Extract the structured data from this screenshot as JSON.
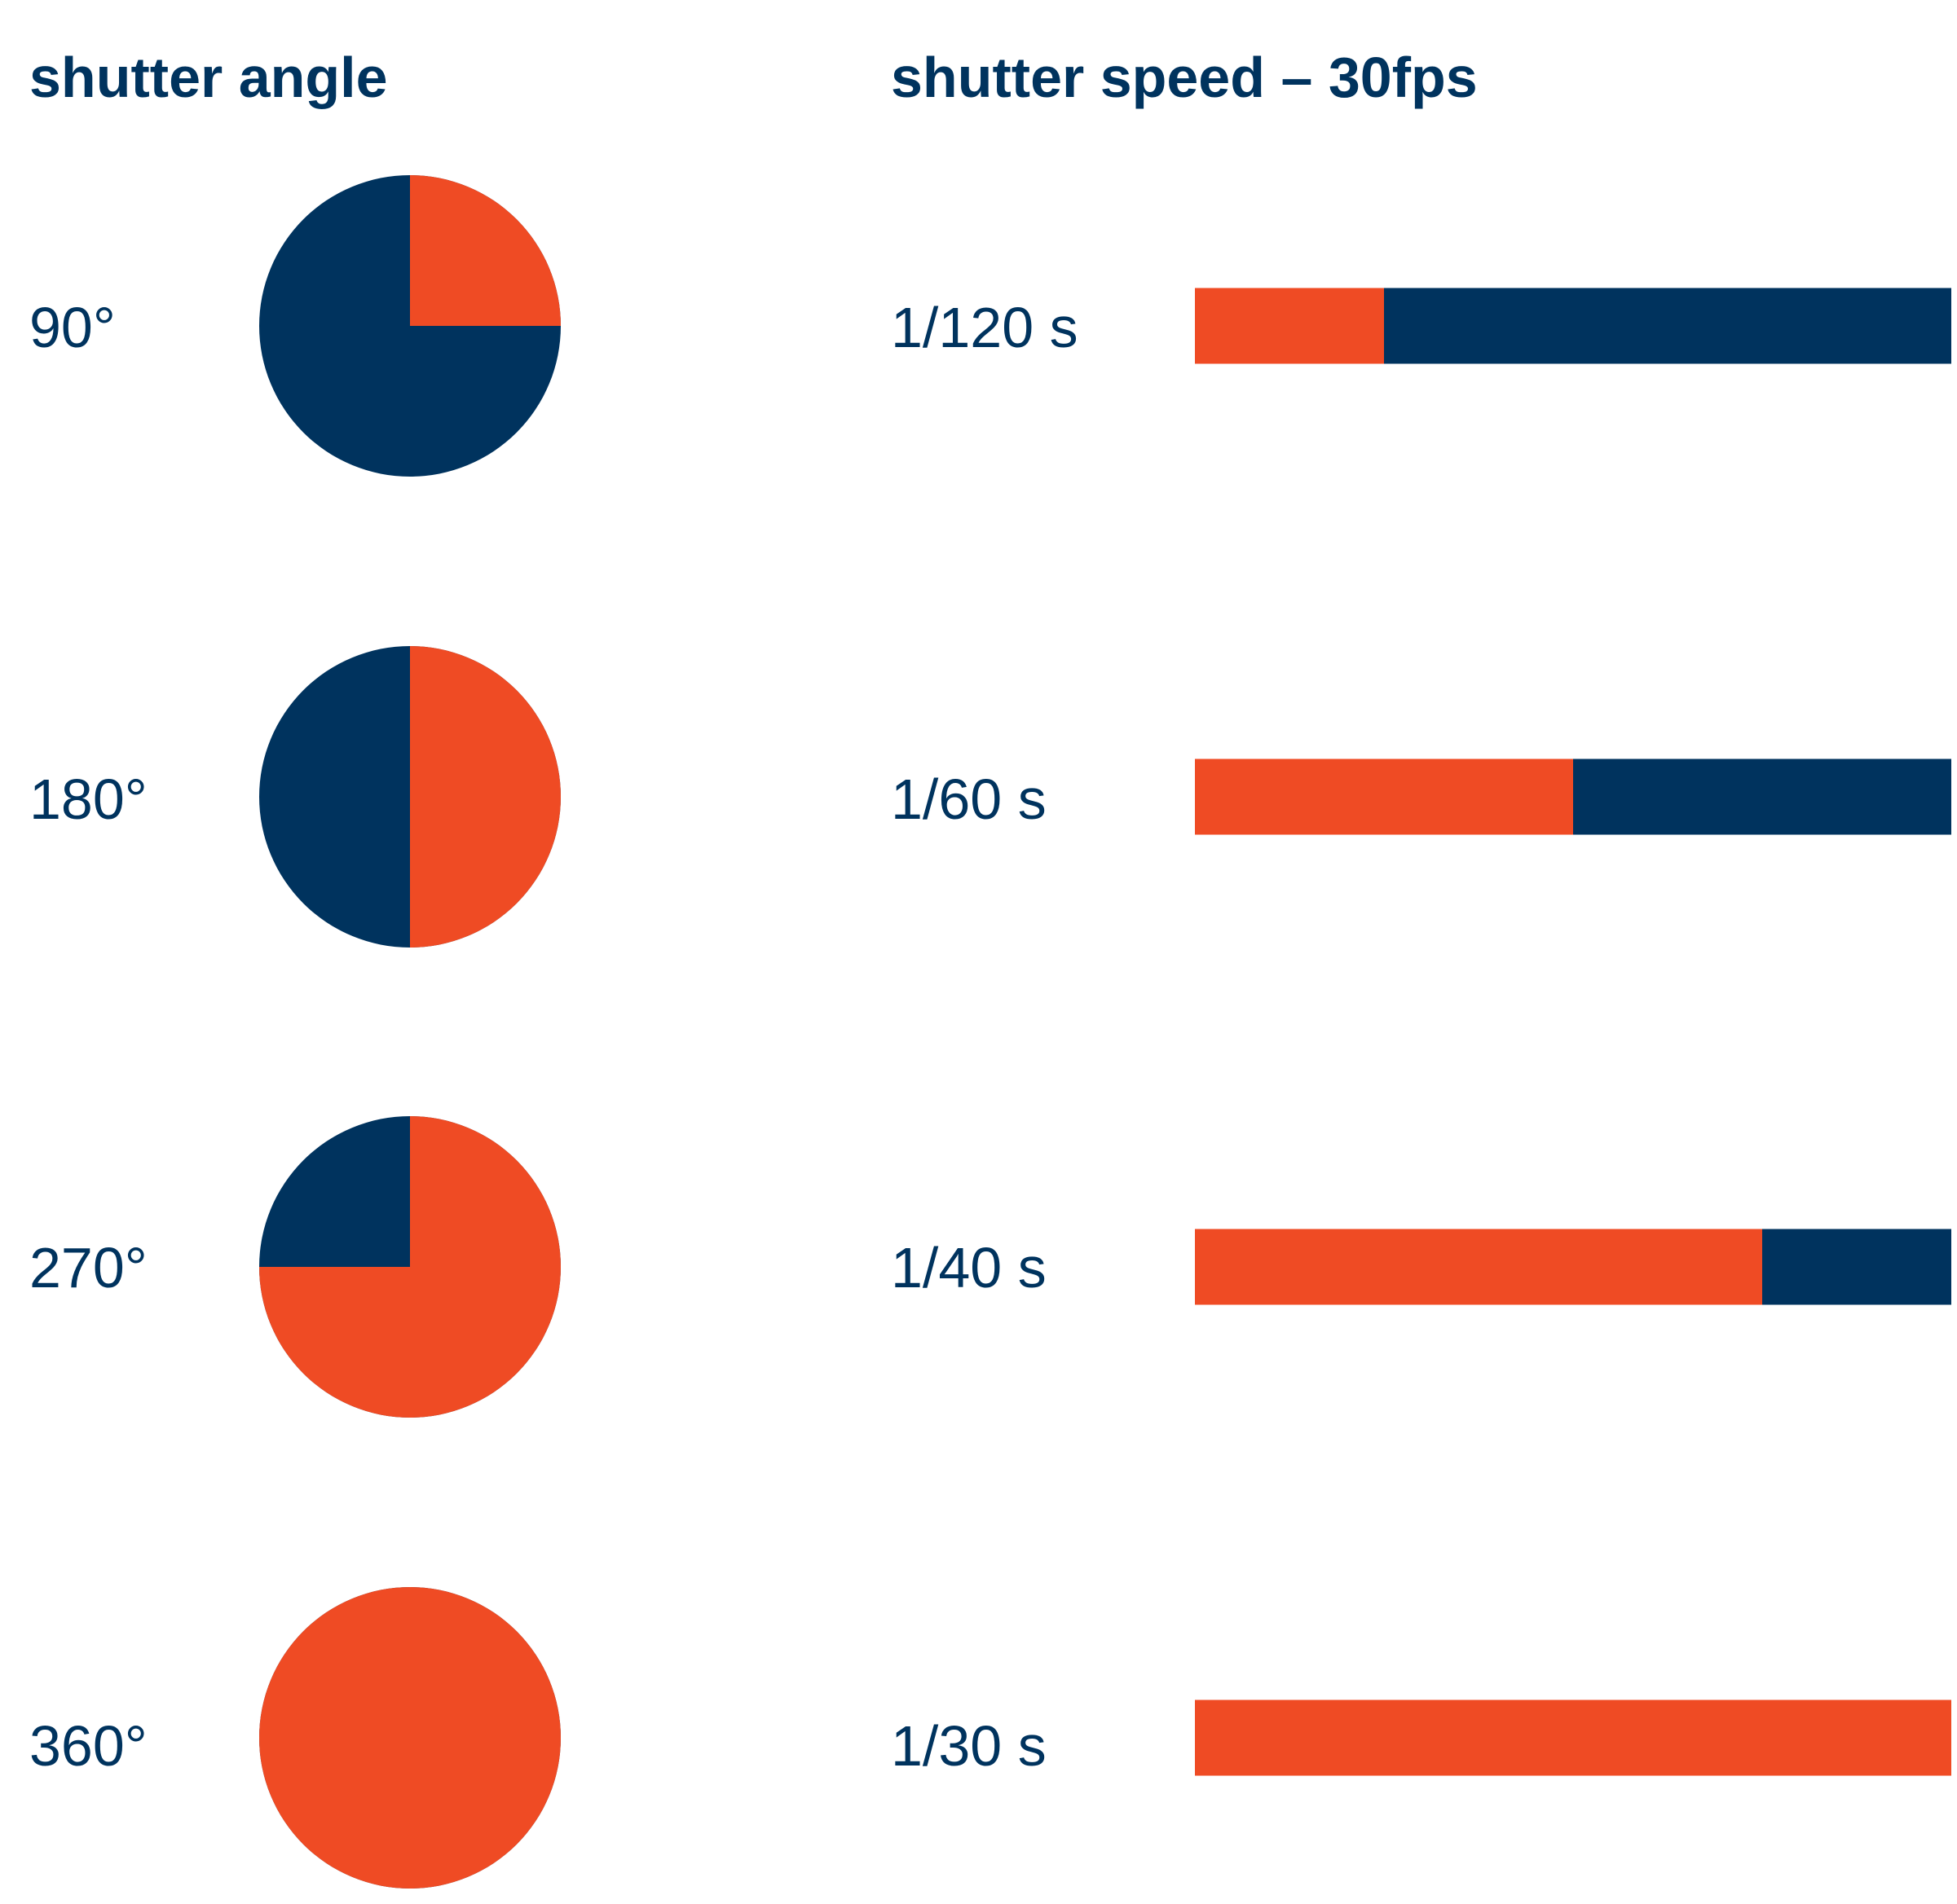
{
  "headings": {
    "angle": "shutter angle",
    "speed": "shutter speed – 30fps"
  },
  "colors": {
    "open": "#ef4b24",
    "closed": "#00335e",
    "text": "#00335e"
  },
  "rows": [
    {
      "angle_label": "90°",
      "speed_label": "1/120 s",
      "angle_deg": 90,
      "open_fraction": 0.25
    },
    {
      "angle_label": "180°",
      "speed_label": "1/60 s",
      "angle_deg": 180,
      "open_fraction": 0.5
    },
    {
      "angle_label": "270°",
      "speed_label": "1/40 s",
      "angle_deg": 270,
      "open_fraction": 0.75
    },
    {
      "angle_label": "360°",
      "speed_label": "1/30 s",
      "angle_deg": 360,
      "open_fraction": 1.0
    }
  ]
}
